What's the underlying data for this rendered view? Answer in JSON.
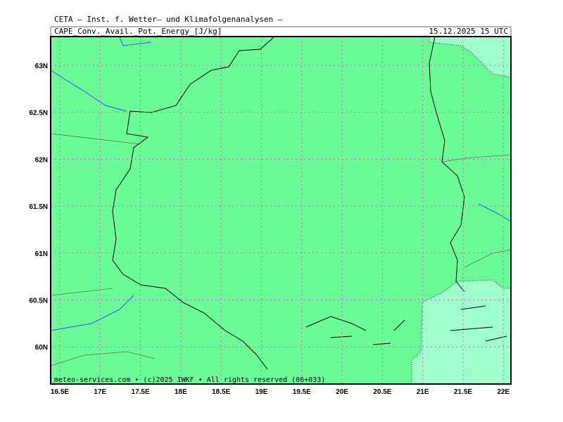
{
  "header": {
    "title": "CETA — Inst. f. Wetter— und Klimafolgenanalysen —",
    "subtitle": "CAPE_Conv._Avail._Pot._Energy_[J/kg]",
    "date": "15.12.2025  15 UTC"
  },
  "map": {
    "lon_labels": [
      "16.5E",
      "17E",
      "17.5E",
      "18E",
      "18.5E",
      "19E",
      "19.5E",
      "20E",
      "20.5E",
      "21E",
      "21.5E",
      "22E"
    ],
    "lat_labels": [
      "63N",
      "62.5N",
      "62N",
      "61.5N",
      "61N",
      "60.5N",
      "60N"
    ],
    "footer": "meteo-services.com • (c)2025 IWKF • All rights reserved (06+033)"
  }
}
